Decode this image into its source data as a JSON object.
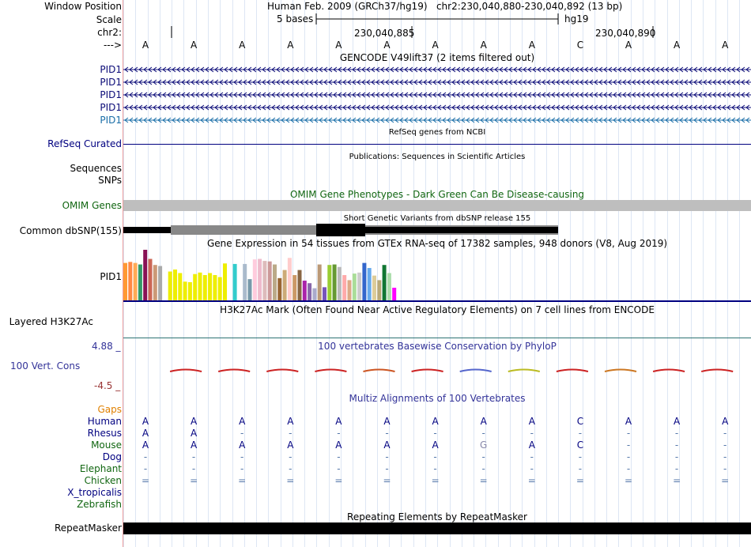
{
  "header": {
    "window_position_label": "Window Position",
    "window_position_text": "Human Feb. 2009 (GRCh37/hg19)   chr2:230,040,880-230,040,892 (13 bp)",
    "scale_label": "Scale",
    "scale_text": "5 bases",
    "scale_assembly": "hg19",
    "chrom_label": "chr2:",
    "coord1": "230,040,885",
    "coord2": "230,040,890",
    "strand_label": "--->"
  },
  "sequence": [
    "A",
    "A",
    "A",
    "A",
    "A",
    "A",
    "A",
    "A",
    "A",
    "C",
    "A",
    "A",
    "A"
  ],
  "tracks": {
    "gencode": {
      "title": "GENCODE V49lift37 (2 items filtered out)",
      "items": [
        "PID1",
        "PID1",
        "PID1",
        "PID1",
        "PID1"
      ],
      "colors": [
        "#0c0c78",
        "#0c0c78",
        "#0c0c78",
        "#0c0c78",
        "#1a6ea8"
      ]
    },
    "refseq": {
      "title": "RefSeq genes from NCBI",
      "label": "RefSeq Curated"
    },
    "publications": {
      "title": "Publications: Sequences in Scientific Articles",
      "label1": "Sequences",
      "label2": "SNPs"
    },
    "omim": {
      "title": "OMIM Gene Phenotypes - Dark Green Can Be Disease-causing",
      "label": "OMIM Genes"
    },
    "dbsnp": {
      "title": "Short Genetic Variants from dbSNP release 155",
      "label": "Common dbSNP(155)"
    },
    "gtex": {
      "title": "Gene Expression in 54 tissues from GTEx RNA-seq of 17382 samples, 948 donors (V8, Aug 2019)",
      "label": "PID1",
      "values": [
        0.74,
        0.76,
        0.74,
        0.71,
        1.0,
        0.82,
        0.7,
        0.68,
        0.0,
        0.57,
        0.61,
        0.54,
        0.37,
        0.36,
        0.52,
        0.55,
        0.5,
        0.54,
        0.5,
        0.46,
        0.73,
        0.0,
        0.72,
        0.0,
        0.72,
        0.42,
        0.81,
        0.82,
        0.78,
        0.77,
        0.71,
        0.44,
        0.6,
        0.84,
        0.5,
        0.6,
        0.39,
        0.34,
        0.24,
        0.71,
        0.26,
        0.7,
        0.71,
        0.66,
        0.5,
        0.4,
        0.53,
        0.55,
        0.74,
        0.64,
        0.49,
        0.4,
        0.7,
        0.54,
        0.25
      ],
      "colors": [
        "#ff9933",
        "#ff8844",
        "#ffaa55",
        "#339966",
        "#881155",
        "#cc6655",
        "#cc9977",
        "#aaaaaa",
        "#ffffff",
        "#eeee00",
        "#eeee00",
        "#eeee00",
        "#eeee00",
        "#eeee00",
        "#eeee00",
        "#eeee00",
        "#eeee00",
        "#eeee00",
        "#eeee00",
        "#eeee00",
        "#eeee00",
        "#ffffff",
        "#33cccc",
        "#ffffff",
        "#aabbcc",
        "#7799aa",
        "#ffccdd",
        "#eebbcc",
        "#ddbbbb",
        "#cc9999",
        "#bbaa88",
        "#996633",
        "#ccaa77",
        "#ffcccc",
        "#cc9966",
        "#886644",
        "#aa22aa",
        "#8866aa",
        "#aaaacc",
        "#bb9977",
        "#7755bb",
        "#99cc33",
        "#669933",
        "#bbbbbb",
        "#ffaaaa",
        "#ddaa88",
        "#aadd99",
        "#cccccc",
        "#3366cc",
        "#66aaee",
        "#ddcc99",
        "#bbaa77",
        "#117733",
        "#aaddaa",
        "#ff00ff"
      ]
    },
    "h3k27ac": {
      "title": "H3K27Ac Mark (Often Found Near Active Regulatory Elements) on 7 cell lines from ENCODE",
      "label": "Layered H3K27Ac"
    },
    "conservation": {
      "title": "100 vertebrates Basewise Conservation by PhyloP",
      "label": "100 Vert. Cons",
      "max": "4.88 _",
      "min": "-4.5 _"
    },
    "multiz": {
      "title": "Multiz Alignments of 100 Vertebrates",
      "gaps_label": "Gaps",
      "species": [
        {
          "name": "Human",
          "bases": [
            "A",
            "A",
            "A",
            "A",
            "A",
            "A",
            "A",
            "A",
            "A",
            "C",
            "A",
            "A",
            "A"
          ]
        },
        {
          "name": "Rhesus",
          "bases": [
            "A",
            "A",
            "-",
            "-",
            "-",
            "-",
            "-",
            "-",
            "-",
            "-",
            "-",
            "-",
            "-"
          ]
        },
        {
          "name": "Mouse",
          "bases": [
            "A",
            "A",
            "A",
            "A",
            "A",
            "A",
            "A",
            "G",
            "A",
            "C",
            "-",
            "-",
            "-"
          ]
        },
        {
          "name": "Dog",
          "bases": [
            "-",
            "-",
            "-",
            "-",
            "-",
            "-",
            "-",
            "-",
            "-",
            "-",
            "-",
            "-",
            "-"
          ]
        },
        {
          "name": "Elephant",
          "bases": [
            "-",
            "-",
            "-",
            "-",
            "-",
            "-",
            "-",
            "-",
            "-",
            "-",
            "-",
            "-",
            "-"
          ]
        },
        {
          "name": "Chicken",
          "bases": [
            "=",
            "=",
            "=",
            "=",
            "=",
            "=",
            "=",
            "=",
            "=",
            "=",
            "=",
            "=",
            "="
          ]
        },
        {
          "name": "X_tropicalis",
          "bases": [
            "",
            "",
            "",
            "",
            "",
            "",
            "",
            "",
            "",
            "",
            "",
            "",
            ""
          ]
        },
        {
          "name": "Zebrafish",
          "bases": [
            "",
            "",
            "",
            "",
            "",
            "",
            "",
            "",
            "",
            "",
            "",
            "",
            ""
          ]
        }
      ],
      "species_colors": [
        "#000080",
        "#000080",
        "#116611",
        "#000080",
        "#116611",
        "#116611",
        "#000080",
        "#116611"
      ]
    },
    "repeatmasker": {
      "title": "Repeating Elements by RepeatMasker",
      "label": "RepeatMasker"
    }
  }
}
